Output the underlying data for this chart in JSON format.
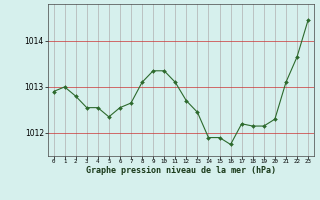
{
  "x": [
    0,
    1,
    2,
    3,
    4,
    5,
    6,
    7,
    8,
    9,
    10,
    11,
    12,
    13,
    14,
    15,
    16,
    17,
    18,
    19,
    20,
    21,
    22,
    23
  ],
  "y": [
    1012.9,
    1013.0,
    1012.8,
    1012.55,
    1012.55,
    1012.35,
    1012.55,
    1012.65,
    1013.1,
    1013.35,
    1013.35,
    1013.1,
    1012.7,
    1012.45,
    1011.9,
    1011.9,
    1011.75,
    1012.2,
    1012.15,
    1012.15,
    1012.3,
    1013.1,
    1013.65,
    1014.45
  ],
  "line_color": "#2d6a2d",
  "marker_color": "#2d6a2d",
  "bg_color": "#d6f0ed",
  "grid_color_v": "#b0b0b0",
  "grid_color_h": "#cc3333",
  "xlabel": "Graphe pression niveau de la mer (hPa)",
  "yticks": [
    1012,
    1013,
    1014
  ],
  "ylim": [
    1011.5,
    1014.8
  ],
  "xlim": [
    -0.5,
    23.5
  ]
}
